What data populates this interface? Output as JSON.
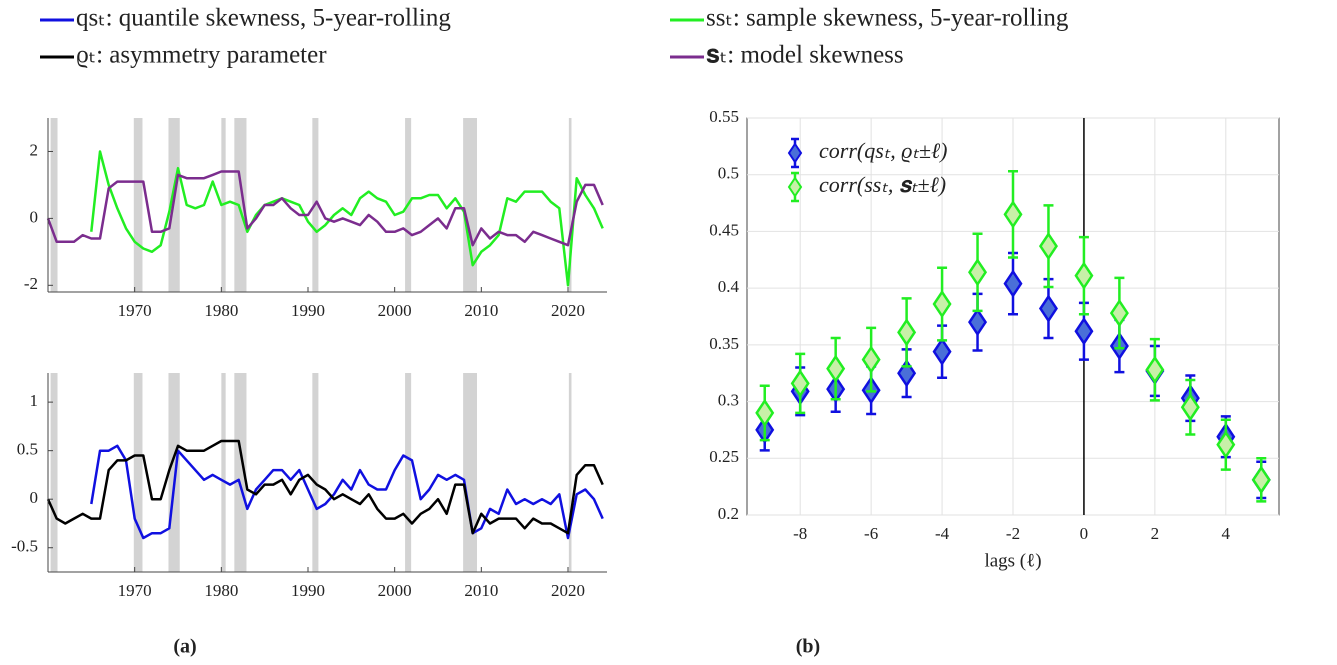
{
  "chart_data": [
    {
      "type": "line",
      "x": [
        1960,
        1961,
        1962,
        1963,
        1964,
        1965,
        1966,
        1967,
        1968,
        1969,
        1970,
        1971,
        1972,
        1973,
        1974,
        1975,
        1976,
        1977,
        1978,
        1979,
        1980,
        1981,
        1982,
        1983,
        1984,
        1985,
        1986,
        1987,
        1988,
        1989,
        1990,
        1991,
        1992,
        1993,
        1994,
        1995,
        1996,
        1997,
        1998,
        1999,
        2000,
        2001,
        2002,
        2003,
        2004,
        2005,
        2006,
        2007,
        2008,
        2009,
        2010,
        2011,
        2012,
        2013,
        2014,
        2015,
        2016,
        2017,
        2018,
        2019,
        2020,
        2021,
        2022,
        2023,
        2024
      ],
      "series": [
        {
          "name": "ssₜ: sample skewness, 5-year-rolling",
          "color": "#22ee22",
          "values": [
            null,
            null,
            null,
            null,
            null,
            -0.4,
            2.0,
            1.0,
            0.3,
            -0.3,
            -0.7,
            -0.9,
            -1.0,
            -0.8,
            0.2,
            1.5,
            0.4,
            0.3,
            0.4,
            1.1,
            0.4,
            0.5,
            0.4,
            -0.4,
            0.1,
            0.4,
            0.5,
            0.6,
            0.5,
            0.4,
            -0.1,
            -0.4,
            -0.2,
            0.1,
            0.3,
            0.1,
            0.6,
            0.8,
            0.6,
            0.5,
            0.1,
            0.2,
            0.6,
            0.6,
            0.7,
            0.7,
            0.3,
            0.6,
            0.2,
            -1.4,
            -1.0,
            -0.8,
            -0.5,
            0.6,
            0.5,
            0.8,
            0.8,
            0.8,
            0.5,
            0.3,
            -2.0,
            1.2,
            0.7,
            0.3,
            -0.3
          ]
        },
        {
          "name": "𝐬ₜ: model skewness",
          "color": "#7b2d8e",
          "values": [
            0,
            -0.7,
            -0.7,
            -0.7,
            -0.5,
            -0.6,
            -0.6,
            0.9,
            1.1,
            1.1,
            1.1,
            1.1,
            -0.4,
            -0.4,
            -0.3,
            1.3,
            1.2,
            1.2,
            1.2,
            1.3,
            1.4,
            1.4,
            1.4,
            -0.3,
            0,
            0.4,
            0.4,
            0.6,
            0.3,
            0.1,
            0.1,
            0.5,
            0,
            -0.1,
            0,
            -0.1,
            -0.2,
            0.1,
            -0.1,
            -0.4,
            -0.4,
            -0.3,
            -0.5,
            -0.4,
            -0.2,
            0,
            -0.3,
            0.3,
            0.3,
            -0.8,
            -0.3,
            -0.6,
            -0.4,
            -0.5,
            -0.5,
            -0.7,
            -0.4,
            -0.5,
            -0.6,
            -0.7,
            -0.8,
            0.5,
            1.0,
            1.0,
            0.4
          ]
        }
      ],
      "xlim": [
        1960,
        2024.5
      ],
      "xticks": [
        1970,
        1980,
        1990,
        2000,
        2010,
        2020
      ],
      "ylim": [
        -2.2,
        3
      ],
      "yticks": [
        -2,
        0,
        2
      ],
      "shaded_spans": [
        [
          1960.3,
          1961.1
        ],
        [
          1969.9,
          1970.9
        ],
        [
          1973.9,
          1975.2
        ],
        [
          1980.0,
          1980.5
        ],
        [
          1981.5,
          1982.9
        ],
        [
          1990.5,
          1991.2
        ],
        [
          2001.2,
          2001.9
        ],
        [
          2007.9,
          2009.5
        ],
        [
          2020.1,
          2020.4
        ]
      ],
      "shade_color": "#d3d3d3"
    },
    {
      "type": "line",
      "x": [
        1960,
        1961,
        1962,
        1963,
        1964,
        1965,
        1966,
        1967,
        1968,
        1969,
        1970,
        1971,
        1972,
        1973,
        1974,
        1975,
        1976,
        1977,
        1978,
        1979,
        1980,
        1981,
        1982,
        1983,
        1984,
        1985,
        1986,
        1987,
        1988,
        1989,
        1990,
        1991,
        1992,
        1993,
        1994,
        1995,
        1996,
        1997,
        1998,
        1999,
        2000,
        2001,
        2002,
        2003,
        2004,
        2005,
        2006,
        2007,
        2008,
        2009,
        2010,
        2011,
        2012,
        2013,
        2014,
        2015,
        2016,
        2017,
        2018,
        2019,
        2020,
        2021,
        2022,
        2023,
        2024
      ],
      "series": [
        {
          "name": "qsₜ: quantile skewness, 5-year-rolling",
          "color": "#1010e0",
          "values": [
            null,
            null,
            null,
            null,
            null,
            -0.05,
            0.5,
            0.5,
            0.55,
            0.4,
            -0.2,
            -0.4,
            -0.35,
            -0.35,
            -0.3,
            0.5,
            0.4,
            0.3,
            0.2,
            0.25,
            0.2,
            0.15,
            0.2,
            -0.1,
            0.1,
            0.2,
            0.3,
            0.3,
            0.2,
            0.3,
            0.1,
            -0.1,
            -0.05,
            0.05,
            0.2,
            0.1,
            0.3,
            0.15,
            0.1,
            0.1,
            0.3,
            0.45,
            0.4,
            0.0,
            0.1,
            0.25,
            0.2,
            0.25,
            0.2,
            -0.35,
            -0.3,
            -0.1,
            -0.15,
            0.1,
            -0.05,
            0.0,
            -0.05,
            0.0,
            -0.05,
            0.05,
            -0.4,
            0.05,
            0.1,
            0.0,
            -0.2
          ]
        },
        {
          "name": "ϱₜ: asymmetry parameter",
          "color": "#000000",
          "values": [
            0,
            -0.2,
            -0.25,
            -0.2,
            -0.15,
            -0.2,
            -0.2,
            0.3,
            0.4,
            0.4,
            0.45,
            0.45,
            0.0,
            0.0,
            0.3,
            0.55,
            0.5,
            0.5,
            0.5,
            0.55,
            0.6,
            0.6,
            0.6,
            0.1,
            0.05,
            0.15,
            0.15,
            0.2,
            0.05,
            0.2,
            0.25,
            0.15,
            0.1,
            0.0,
            0.05,
            0.0,
            -0.05,
            0.05,
            -0.1,
            -0.2,
            -0.2,
            -0.15,
            -0.25,
            -0.15,
            -0.1,
            0.0,
            -0.15,
            0.15,
            0.15,
            -0.35,
            -0.15,
            -0.25,
            -0.2,
            -0.2,
            -0.2,
            -0.3,
            -0.2,
            -0.25,
            -0.25,
            -0.3,
            -0.35,
            0.25,
            0.35,
            0.35,
            0.15
          ]
        }
      ],
      "xlim": [
        1960,
        2024.5
      ],
      "xticks": [
        1970,
        1980,
        1990,
        2000,
        2010,
        2020
      ],
      "ylim": [
        -0.75,
        1.3
      ],
      "yticks": [
        -0.5,
        0,
        0.5,
        1
      ],
      "shaded_spans": [
        [
          1960.3,
          1961.1
        ],
        [
          1969.9,
          1970.9
        ],
        [
          1973.9,
          1975.2
        ],
        [
          1980.0,
          1980.5
        ],
        [
          1981.5,
          1982.9
        ],
        [
          1990.5,
          1991.2
        ],
        [
          2001.2,
          2001.9
        ],
        [
          2007.9,
          2009.5
        ],
        [
          2020.1,
          2020.4
        ]
      ],
      "shade_color": "#d3d3d3"
    },
    {
      "type": "errorbar",
      "x": [
        -9,
        -8,
        -7,
        -6,
        -5,
        -4,
        -3,
        -2,
        -1,
        0,
        1,
        2,
        3,
        4,
        5
      ],
      "xlabel": "lags (ℓ)",
      "series": [
        {
          "name": "corr(qsₜ, ϱₜ±ℓ)",
          "color": "#1010e0",
          "fill": "#4a6fd8",
          "values": [
            0.275,
            0.309,
            0.311,
            0.31,
            0.325,
            0.344,
            0.37,
            0.404,
            0.382,
            0.362,
            0.349,
            0.327,
            0.303,
            0.269,
            0.231
          ],
          "errors": [
            0.018,
            0.021,
            0.02,
            0.021,
            0.021,
            0.023,
            0.025,
            0.027,
            0.026,
            0.025,
            0.023,
            0.022,
            0.02,
            0.018,
            0.016
          ]
        },
        {
          "name": "corr(ssₜ, 𝐬ₜ±ℓ)",
          "color": "#22ee22",
          "fill": "#c8f0a8",
          "values": [
            0.29,
            0.316,
            0.329,
            0.337,
            0.361,
            0.386,
            0.414,
            0.465,
            0.437,
            0.411,
            0.378,
            0.328,
            0.295,
            0.262,
            0.231
          ],
          "errors": [
            0.024,
            0.026,
            0.027,
            0.028,
            0.03,
            0.032,
            0.034,
            0.038,
            0.036,
            0.034,
            0.031,
            0.027,
            0.024,
            0.022,
            0.019
          ]
        }
      ],
      "xlim": [
        -9.5,
        5.5
      ],
      "xticks": [
        -8,
        -6,
        -4,
        -2,
        0,
        2,
        4
      ],
      "ylim": [
        0.2,
        0.55
      ],
      "yticks": [
        0.2,
        0.25,
        0.3,
        0.35,
        0.4,
        0.45,
        0.5,
        0.55
      ],
      "grid": true,
      "vline": 0,
      "legend": "upper left"
    }
  ],
  "captions": [
    "(a)",
    "(b)"
  ]
}
